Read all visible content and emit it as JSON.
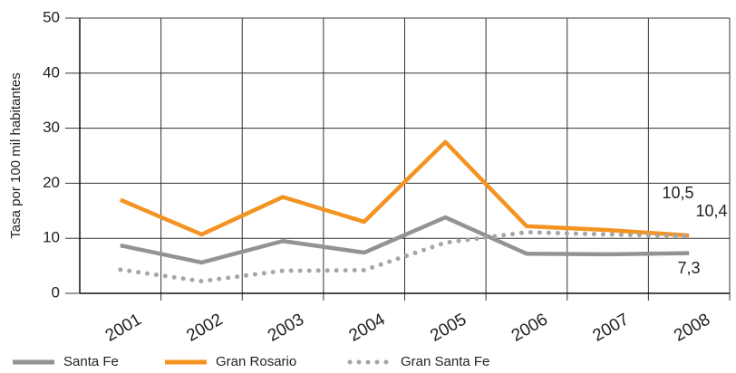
{
  "chart_data": {
    "type": "line",
    "y_label": "Tasa por 100 mil habitantes",
    "categories": [
      "2001",
      "2002",
      "2003",
      "2004",
      "2005",
      "2006",
      "2007",
      "2008"
    ],
    "series": [
      {
        "name": "Santa Fe",
        "color": "#939393",
        "dash": false,
        "values": [
          8.7,
          5.6,
          9.5,
          7.4,
          13.8,
          7.2,
          7.1,
          7.3
        ],
        "value_labels": [
          null,
          null,
          null,
          null,
          null,
          null,
          null,
          "7,3"
        ]
      },
      {
        "name": "Gran Rosario",
        "color": "#f39322",
        "dash": false,
        "values": [
          17,
          10.7,
          17.5,
          13,
          27.5,
          12.2,
          11.5,
          10.5
        ],
        "value_labels": [
          null,
          null,
          null,
          null,
          null,
          null,
          null,
          "10,5"
        ]
      },
      {
        "name": "Gran Santa Fe",
        "color": "#a6a6a6",
        "dash": true,
        "values": [
          4.3,
          2.2,
          4.1,
          4.2,
          9.2,
          11.1,
          10.7,
          10.4
        ],
        "value_labels": [
          null,
          null,
          null,
          null,
          null,
          null,
          null,
          "10,4"
        ]
      }
    ],
    "ylim": [
      0,
      50
    ],
    "yticks": [
      0,
      10,
      20,
      30,
      40,
      50
    ],
    "grid": true
  }
}
